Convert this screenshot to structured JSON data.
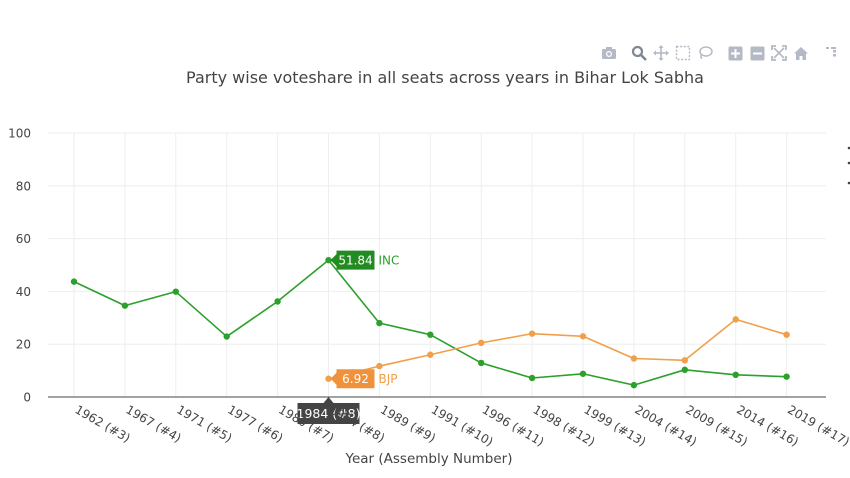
{
  "chart_data": {
    "type": "line",
    "title": "Party wise voteshare in all seats across years in Bihar Lok Sabha",
    "xlabel": "Year (Assembly Number)",
    "ylabel": "",
    "ylim": [
      0,
      100
    ],
    "yticks": [
      0,
      20,
      40,
      60,
      80,
      100
    ],
    "grid": true,
    "categories": [
      "1962 (#3)",
      "1967 (#4)",
      "1971 (#5)",
      "1977 (#6)",
      "1980 (#7)",
      "1984 (#8)",
      "1989 (#9)",
      "1991 (#10)",
      "1996 (#11)",
      "1998 (#12)",
      "1999 (#13)",
      "2004 (#14)",
      "2009 (#15)",
      "2014 (#16)",
      "2019 (#17)"
    ],
    "series": [
      {
        "name": "INC",
        "color": "#2ca02c",
        "values": [
          43.7,
          34.6,
          39.9,
          22.9,
          36.2,
          51.84,
          28.0,
          23.6,
          12.9,
          7.2,
          8.8,
          4.5,
          10.3,
          8.4,
          7.7
        ]
      },
      {
        "name": "BJP",
        "color": "#f0a04b",
        "values": [
          null,
          null,
          null,
          null,
          null,
          6.92,
          11.7,
          16.0,
          20.5,
          24.0,
          23.0,
          14.6,
          13.9,
          29.4,
          23.6
        ]
      }
    ],
    "hover": {
      "category_index": 5,
      "x_label": "1984 (#8)",
      "labels": [
        {
          "series": "INC",
          "value_text": "51.84",
          "name_text": "INC",
          "box_color": "#228b22"
        },
        {
          "series": "BJP",
          "value_text": "6.92",
          "name_text": "BJP",
          "box_color": "#f0923c"
        }
      ]
    }
  },
  "modebar": {
    "icons": [
      "camera-icon",
      "zoom-icon",
      "pan-icon",
      "box-select-icon",
      "lasso-select-icon",
      "zoom-in-icon",
      "zoom-out-icon",
      "autoscale-icon",
      "home-icon",
      "spike-lines-icon"
    ],
    "icon_color": "#b4b9c6",
    "active_color": "#7f8794"
  },
  "colors": {
    "text": "#444444",
    "grid": "#eeeeee",
    "axis": "#444444"
  }
}
